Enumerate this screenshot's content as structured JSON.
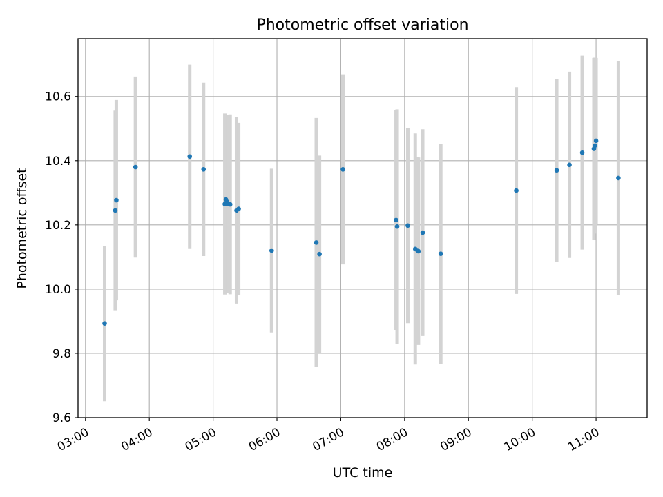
{
  "chart_data": {
    "type": "scatter",
    "title": "Photometric offset variation",
    "xlabel": "UTC time",
    "ylabel": "Photometric offset",
    "xlim": [
      "02:53",
      "11:48"
    ],
    "ylim": [
      9.6,
      10.78
    ],
    "grid": true,
    "x_ticks": [
      "03:00",
      "04:00",
      "05:00",
      "06:00",
      "07:00",
      "08:00",
      "09:00",
      "10:00",
      "11:00"
    ],
    "y_ticks": [
      "9.6",
      "9.8",
      "10.0",
      "10.2",
      "10.4",
      "10.6"
    ],
    "colors": {
      "point": "#1f77b4",
      "errorbar": "#d3d3d3",
      "grid": "#b0b0b0"
    },
    "points": [
      {
        "x": "03:18",
        "y": 9.893,
        "err": 0.242
      },
      {
        "x": "03:28",
        "y": 10.245,
        "err": 0.311
      },
      {
        "x": "03:29",
        "y": 10.277,
        "err": 0.312
      },
      {
        "x": "03:47",
        "y": 10.38,
        "err": 0.282
      },
      {
        "x": "04:38",
        "y": 10.413,
        "err": 0.286
      },
      {
        "x": "04:51",
        "y": 10.373,
        "err": 0.27
      },
      {
        "x": "05:11",
        "y": 10.265,
        "err": 0.282
      },
      {
        "x": "05:12",
        "y": 10.279,
        "err": 0.263
      },
      {
        "x": "05:13",
        "y": 10.272,
        "err": 0.271
      },
      {
        "x": "05:14",
        "y": 10.265,
        "err": 0.277
      },
      {
        "x": "05:16",
        "y": 10.264,
        "err": 0.28
      },
      {
        "x": "05:22",
        "y": 10.245,
        "err": 0.29
      },
      {
        "x": "05:24",
        "y": 10.25,
        "err": 0.268
      },
      {
        "x": "05:55",
        "y": 10.12,
        "err": 0.255
      },
      {
        "x": "06:37",
        "y": 10.145,
        "err": 0.388
      },
      {
        "x": "06:40",
        "y": 10.109,
        "err": 0.307
      },
      {
        "x": "07:02",
        "y": 10.373,
        "err": 0.296
      },
      {
        "x": "07:52",
        "y": 10.215,
        "err": 0.342
      },
      {
        "x": "07:53",
        "y": 10.195,
        "err": 0.365
      },
      {
        "x": "08:03",
        "y": 10.198,
        "err": 0.304
      },
      {
        "x": "08:10",
        "y": 10.125,
        "err": 0.36
      },
      {
        "x": "08:12",
        "y": 10.121,
        "err": 0.29
      },
      {
        "x": "08:13",
        "y": 10.118,
        "err": 0.292
      },
      {
        "x": "08:17",
        "y": 10.176,
        "err": 0.322
      },
      {
        "x": "08:34",
        "y": 10.11,
        "err": 0.343
      },
      {
        "x": "09:45",
        "y": 10.307,
        "err": 0.322
      },
      {
        "x": "10:23",
        "y": 10.37,
        "err": 0.285
      },
      {
        "x": "10:35",
        "y": 10.387,
        "err": 0.29
      },
      {
        "x": "10:47",
        "y": 10.425,
        "err": 0.302
      },
      {
        "x": "10:58",
        "y": 10.437,
        "err": 0.283
      },
      {
        "x": "10:59",
        "y": 10.447,
        "err": 0.274
      },
      {
        "x": "11:00",
        "y": 10.462,
        "err": 0.258
      },
      {
        "x": "11:21",
        "y": 10.346,
        "err": 0.365
      }
    ]
  }
}
